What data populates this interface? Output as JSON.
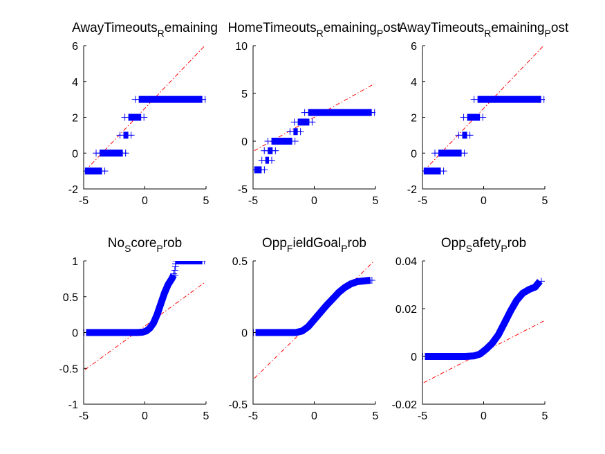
{
  "figure": {
    "background": "#ffffff",
    "marker_color": "#0000ff",
    "ref_line_color": "#ff0000"
  },
  "chart_data": [
    {
      "type": "scatter",
      "subtype": "qqplot",
      "title": "AwayTimeouts_Remaining",
      "xlim": [
        -5,
        5
      ],
      "ylim": [
        -2,
        6
      ],
      "xticks": [
        -5,
        0,
        5
      ],
      "yticks": [
        -2,
        0,
        2,
        4,
        6
      ],
      "xticklabels": [
        "-5",
        "0",
        "5"
      ],
      "yticklabels": [
        "-2",
        "0",
        "2",
        "4",
        "6"
      ],
      "ref_line": [
        [
          -4.9,
          -1.0
        ],
        [
          4.9,
          6.0
        ]
      ],
      "segments": [
        {
          "x0": -4.9,
          "x1": -3.5,
          "y": -1
        },
        {
          "x0": -3.7,
          "x1": -1.8,
          "y": 0
        },
        {
          "x0": -1.75,
          "x1": -1.35,
          "y": 1
        },
        {
          "x0": -1.35,
          "x1": -0.3,
          "y": 2
        },
        {
          "x0": -0.5,
          "x1": 4.7,
          "y": 3
        }
      ]
    },
    {
      "type": "scatter",
      "subtype": "qqplot",
      "title": "HomeTimeouts_Remaining_Post",
      "xlim": [
        -5,
        5
      ],
      "ylim": [
        -5,
        10
      ],
      "xticks": [
        -5,
        0,
        5
      ],
      "yticks": [
        -5,
        0,
        5,
        10
      ],
      "xticklabels": [
        "-5",
        "0",
        "5"
      ],
      "yticklabels": [
        "-5",
        "0",
        "5",
        "10"
      ],
      "ref_line": [
        [
          -4.9,
          -1.0
        ],
        [
          4.9,
          6.0
        ]
      ],
      "segments": [
        {
          "x0": -4.9,
          "x1": -4.3,
          "y": -3
        },
        {
          "x0": -4.0,
          "x1": -3.7,
          "y": -2
        },
        {
          "x0": -3.8,
          "x1": -3.4,
          "y": -1
        },
        {
          "x0": -3.5,
          "x1": -1.8,
          "y": 0
        },
        {
          "x0": -1.7,
          "x1": -1.35,
          "y": 1
        },
        {
          "x0": -1.35,
          "x1": -0.4,
          "y": 2
        },
        {
          "x0": -0.5,
          "x1": 4.7,
          "y": 3
        }
      ]
    },
    {
      "type": "scatter",
      "subtype": "qqplot",
      "title": "AwayTimeouts_Remaining_Post",
      "xlim": [
        -5,
        5
      ],
      "ylim": [
        -2,
        6
      ],
      "xticks": [
        -5,
        0,
        5
      ],
      "yticks": [
        -2,
        0,
        2,
        4,
        6
      ],
      "xticklabels": [
        "-5",
        "0",
        "5"
      ],
      "yticklabels": [
        "-2",
        "0",
        "2",
        "4",
        "6"
      ],
      "ref_line": [
        [
          -4.9,
          -1.0
        ],
        [
          4.9,
          6.0
        ]
      ],
      "segments": [
        {
          "x0": -4.9,
          "x1": -3.5,
          "y": -1
        },
        {
          "x0": -3.7,
          "x1": -1.8,
          "y": 0
        },
        {
          "x0": -1.75,
          "x1": -1.35,
          "y": 1
        },
        {
          "x0": -1.35,
          "x1": -0.3,
          "y": 2
        },
        {
          "x0": -0.5,
          "x1": 4.7,
          "y": 3
        }
      ]
    },
    {
      "type": "scatter",
      "subtype": "qqplot",
      "title": "No_Score_Prob",
      "xlim": [
        -5,
        5
      ],
      "ylim": [
        -1,
        1
      ],
      "xticks": [
        -5,
        0,
        5
      ],
      "yticks": [
        -1,
        -0.5,
        0,
        0.5,
        1
      ],
      "xticklabels": [
        "-5",
        "0",
        "5"
      ],
      "yticklabels": [
        "-1",
        "-0.5",
        "0",
        "0.5",
        "1"
      ],
      "ref_line": [
        [
          -4.9,
          -0.52
        ],
        [
          4.9,
          0.7
        ]
      ],
      "curve": [
        [
          -4.8,
          0
        ],
        [
          -3,
          0
        ],
        [
          -1.5,
          0
        ],
        [
          -0.6,
          0
        ],
        [
          -0.2,
          0.005
        ],
        [
          0.1,
          0.02
        ],
        [
          0.4,
          0.06
        ],
        [
          0.7,
          0.13
        ],
        [
          1.0,
          0.25
        ],
        [
          1.3,
          0.4
        ],
        [
          1.6,
          0.55
        ],
        [
          1.9,
          0.67
        ],
        [
          2.2,
          0.75
        ],
        [
          2.35,
          0.8
        ]
      ],
      "jumps": [
        [
          2.35,
          0.82
        ],
        [
          2.45,
          0.87
        ],
        [
          2.5,
          0.92
        ],
        [
          2.5,
          0.96
        ],
        [
          2.55,
          1.0
        ]
      ],
      "top_segment": {
        "x0": 2.55,
        "x1": 4.7,
        "y": 1.0
      }
    },
    {
      "type": "scatter",
      "subtype": "qqplot",
      "title": "Opp_FieldGoal_Prob",
      "xlim": [
        -5,
        5
      ],
      "ylim": [
        -0.5,
        0.5
      ],
      "xticks": [
        -5,
        0,
        5
      ],
      "yticks": [
        -0.5,
        0,
        0.5
      ],
      "xticklabels": [
        "-5",
        "0",
        "5"
      ],
      "yticklabels": [
        "-0.5",
        "0",
        "0.5"
      ],
      "ref_line": [
        [
          -4.9,
          -0.32
        ],
        [
          4.9,
          0.5
        ]
      ],
      "curve": [
        [
          -4.8,
          0
        ],
        [
          -3,
          0
        ],
        [
          -1.5,
          0
        ],
        [
          -1.0,
          0.01
        ],
        [
          -0.5,
          0.04
        ],
        [
          0,
          0.09
        ],
        [
          0.5,
          0.14
        ],
        [
          1.0,
          0.19
        ],
        [
          1.5,
          0.235
        ],
        [
          2.0,
          0.28
        ],
        [
          2.5,
          0.315
        ],
        [
          3.0,
          0.34
        ],
        [
          3.5,
          0.355
        ],
        [
          4.0,
          0.36
        ],
        [
          4.6,
          0.365
        ]
      ]
    },
    {
      "type": "scatter",
      "subtype": "qqplot",
      "title": "Opp_Safety_Prob",
      "xlim": [
        -5,
        5
      ],
      "ylim": [
        -0.02,
        0.04
      ],
      "xticks": [
        -5,
        0,
        5
      ],
      "yticks": [
        -0.02,
        0,
        0.02,
        0.04
      ],
      "xticklabels": [
        "-5",
        "0",
        "5"
      ],
      "yticklabels": [
        "-0.02",
        "0",
        "0.02",
        "0.04"
      ],
      "ref_line": [
        [
          -4.9,
          -0.011
        ],
        [
          4.9,
          0.0148
        ]
      ],
      "curve": [
        [
          -4.8,
          0
        ],
        [
          -3,
          0
        ],
        [
          -1.5,
          0
        ],
        [
          -0.8,
          0.0002
        ],
        [
          -0.3,
          0.001
        ],
        [
          0.2,
          0.003
        ],
        [
          0.7,
          0.0055
        ],
        [
          1.2,
          0.009
        ],
        [
          1.7,
          0.014
        ],
        [
          2.2,
          0.019
        ],
        [
          2.7,
          0.0235
        ],
        [
          3.2,
          0.0265
        ],
        [
          3.7,
          0.028
        ],
        [
          4.2,
          0.029
        ],
        [
          4.6,
          0.0315
        ]
      ]
    }
  ]
}
